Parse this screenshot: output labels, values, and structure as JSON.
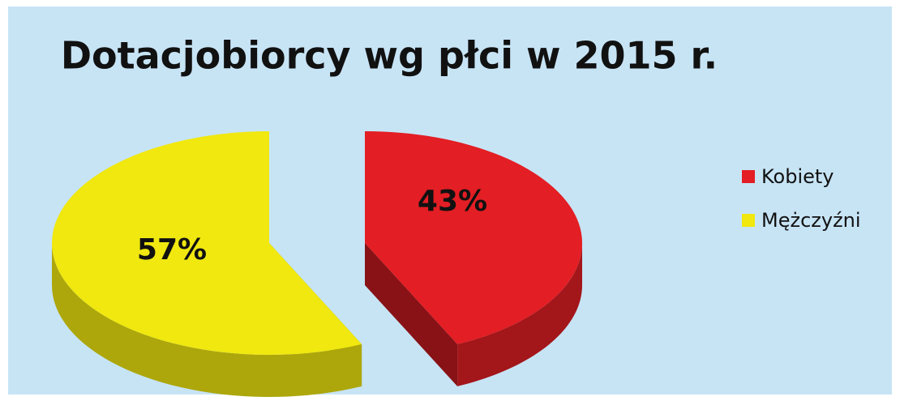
{
  "chart_data": {
    "type": "pie",
    "title": "Dotacjobiorcy wg płci w 2015 r.",
    "categories": [
      "Kobiety",
      "Mężczyźni"
    ],
    "values": [
      43,
      57
    ],
    "value_labels": [
      "43%",
      "57%"
    ],
    "colors": [
      "#e31e24",
      "#f0e80f"
    ],
    "legend": "right"
  }
}
